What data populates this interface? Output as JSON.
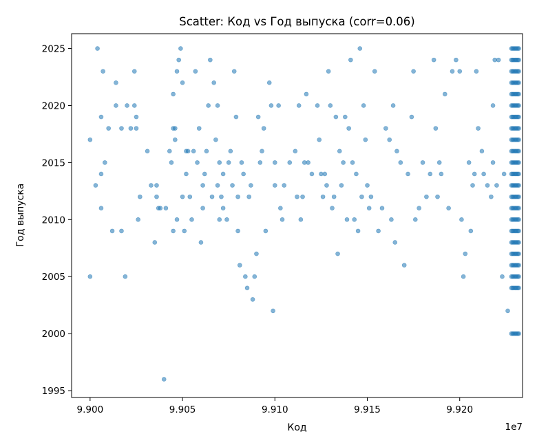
{
  "chart_data": {
    "type": "scatter",
    "title": "Scatter: Код vs Год выпуска (corr=0.06)",
    "xlabel": "Код",
    "ylabel": "Год выпуска",
    "x_offset_label": "1e7",
    "xlim": [
      98990000,
      99234000
    ],
    "ylim": [
      1994.4,
      2026.3
    ],
    "xticks": [
      99000000,
      99050000,
      99100000,
      99150000,
      99200000
    ],
    "xtick_labels": [
      "9.900",
      "9.905",
      "9.910",
      "9.915",
      "9.920"
    ],
    "yticks": [
      1995,
      2000,
      2005,
      2010,
      2015,
      2020,
      2025
    ],
    "ytick_labels": [
      "1995",
      "2000",
      "2005",
      "2010",
      "2015",
      "2020",
      "2025"
    ],
    "grid": false,
    "marker_color": "#1f77b4",
    "x": [
      99000000,
      99000000,
      99003000,
      99004000,
      99006000,
      99006000,
      99006000,
      99007000,
      99008000,
      99010000,
      99012000,
      99014000,
      99014000,
      99017000,
      99017000,
      99019000,
      99020000,
      99022000,
      99024000,
      99024000,
      99025000,
      99025000,
      99026000,
      99027000,
      99031000,
      99033000,
      99035000,
      99036000,
      99036000,
      99037000,
      99038000,
      99040000,
      99041000,
      99043000,
      99044000,
      99045000,
      99045000,
      99045000,
      99046000,
      99046000,
      99047000,
      99047000,
      99048000,
      99049000,
      99050000,
      99050000,
      99051000,
      99052000,
      99052000,
      99053000,
      99054000,
      99055000,
      99056000,
      99057000,
      99058000,
      99059000,
      99060000,
      99061000,
      99061000,
      99062000,
      99063000,
      99064000,
      99065000,
      99066000,
      99067000,
      99068000,
      99069000,
      99069000,
      99070000,
      99070000,
      99071000,
      99072000,
      99072000,
      99074000,
      99075000,
      99076000,
      99077000,
      99078000,
      99079000,
      99080000,
      99080000,
      99081000,
      99082000,
      99083000,
      99084000,
      99085000,
      99086000,
      99087000,
      99088000,
      99089000,
      99090000,
      99091000,
      99092000,
      99093000,
      99094000,
      99095000,
      99097000,
      99098000,
      99099000,
      99100000,
      99100000,
      99102000,
      99103000,
      99104000,
      99105000,
      99108000,
      99111000,
      99112000,
      99113000,
      99114000,
      99115000,
      99116000,
      99117000,
      99118000,
      99120000,
      99123000,
      99124000,
      99125000,
      99126000,
      99127000,
      99128000,
      99129000,
      99130000,
      99131000,
      99132000,
      99133000,
      99134000,
      99135000,
      99136000,
      99137000,
      99138000,
      99139000,
      99140000,
      99141000,
      99142000,
      99143000,
      99144000,
      99145000,
      99146000,
      99147000,
      99148000,
      99149000,
      99150000,
      99151000,
      99152000,
      99154000,
      99156000,
      99158000,
      99160000,
      99162000,
      99163000,
      99164000,
      99165000,
      99166000,
      99168000,
      99170000,
      99172000,
      99174000,
      99175000,
      99176000,
      99178000,
      99180000,
      99182000,
      99184000,
      99186000,
      99187000,
      99188000,
      99189000,
      99190000,
      99192000,
      99194000,
      99196000,
      99198000,
      99200000,
      99201000,
      99202000,
      99203000,
      99205000,
      99206000,
      99207000,
      99208000,
      99209000,
      99210000,
      99212000,
      99213000,
      99215000,
      99217000,
      99218000,
      99218000,
      99219000,
      99220000,
      99221000,
      99223000,
      99224000,
      99226000
    ],
    "y": [
      2005,
      2017,
      2013,
      2025,
      2019,
      2011,
      2014,
      2023,
      2015,
      2018,
      2009,
      2022,
      2020,
      2018,
      2009,
      2005,
      2020,
      2018,
      2023,
      2020,
      2019,
      2018,
      2010,
      2012,
      2016,
      2013,
      2008,
      2013,
      2012,
      2011,
      2011,
      1996,
      2011,
      2016,
      2015,
      2018,
      2021,
      2009,
      2018,
      2017,
      2023,
      2010,
      2024,
      2025,
      2022,
      2012,
      2009,
      2014,
      2016,
      2016,
      2012,
      2010,
      2016,
      2023,
      2015,
      2018,
      2008,
      2011,
      2013,
      2014,
      2016,
      2020,
      2024,
      2012,
      2022,
      2017,
      2020,
      2013,
      2010,
      2015,
      2012,
      2011,
      2014,
      2010,
      2015,
      2016,
      2013,
      2023,
      2019,
      2012,
      2009,
      2006,
      2015,
      2014,
      2005,
      2004,
      2012,
      2013,
      2003,
      2005,
      2007,
      2019,
      2015,
      2016,
      2018,
      2009,
      2022,
      2020,
      2002,
      2015,
      2013,
      2020,
      2011,
      2010,
      2013,
      2015,
      2016,
      2012,
      2020,
      2010,
      2012,
      2015,
      2021,
      2015,
      2014,
      2020,
      2017,
      2014,
      2012,
      2014,
      2013,
      2023,
      2020,
      2011,
      2012,
      2019,
      2007,
      2016,
      2013,
      2015,
      2019,
      2010,
      2018,
      2024,
      2015,
      2010,
      2014,
      2009,
      2025,
      2012,
      2020,
      2017,
      2013,
      2011,
      2012,
      2023,
      2009,
      2011,
      2018,
      2017,
      2010,
      2020,
      2008,
      2016,
      2015,
      2006,
      2014,
      2019,
      2023,
      2010,
      2011,
      2015,
      2012,
      2014,
      2024,
      2018,
      2012,
      2015,
      2014,
      2021,
      2011,
      2023,
      2024,
      2023,
      2010,
      2005,
      2007,
      2015,
      2009,
      2013,
      2014,
      2023,
      2018,
      2016,
      2014,
      2013,
      2012,
      2015,
      2020,
      2024,
      2013,
      2024,
      2005,
      2014,
      2002
    ],
    "dense_cluster": {
      "x_range": [
        99228000,
        99232000
      ],
      "y_values": [
        2025,
        2024,
        2023,
        2022,
        2021,
        2020,
        2019,
        2018,
        2017,
        2016,
        2015,
        2014,
        2013,
        2012,
        2011,
        2010,
        2009,
        2008,
        2007,
        2006,
        2005,
        2004,
        2000
      ]
    }
  }
}
